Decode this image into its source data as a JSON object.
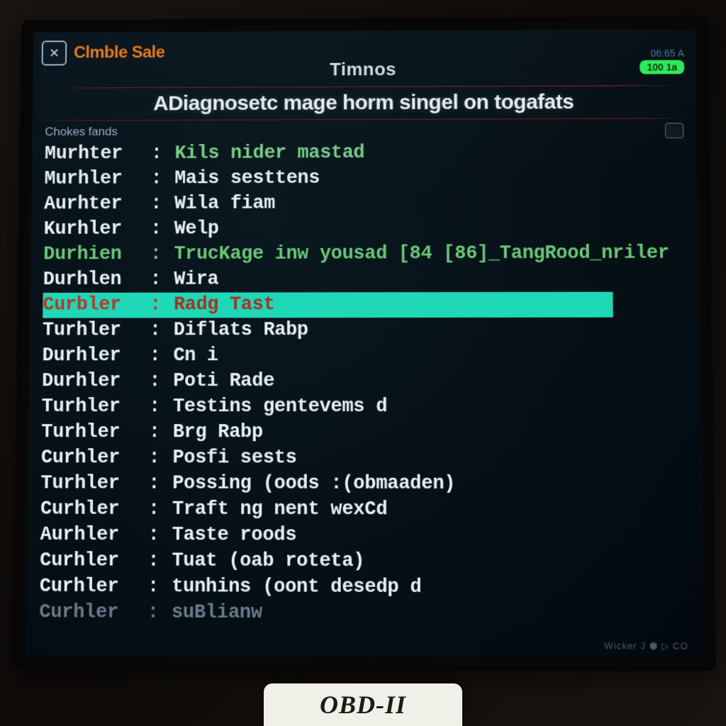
{
  "header": {
    "brand": "Clmble Sale",
    "title": "Timnos",
    "status_text": "06:65 A",
    "status_badge": "100 1a",
    "close_symbol": "✕"
  },
  "subtitle": "ADiagnosetc mage horm singel on togafats",
  "section_label": "Chokes fands",
  "footer": "Wicker  J  ⬢ ▷ CO",
  "bottom_label": "OBD-II",
  "colors": {
    "bg_gradient_start": "#0a1820",
    "bg_gradient_end": "#020810",
    "brand_orange": "#e67a1a",
    "text_primary": "#e8f0f5",
    "text_green": "#6ac878",
    "highlight_bg": "#1fd8b8",
    "highlight_text": "#b83828",
    "divider_red": "#8a1818",
    "status_green": "#2eea5a",
    "faded": "#6a7a8a"
  },
  "rows": [
    {
      "key": "Murhter",
      "sep": ":",
      "value": "Kils nider mastad",
      "style": "green-value"
    },
    {
      "key": "Murhler",
      "sep": ":",
      "value": "Mais sesttens",
      "style": "normal"
    },
    {
      "key": "Aurhter",
      "sep": ":",
      "value": "Wila fiam",
      "style": "normal"
    },
    {
      "key": "Kurhler",
      "sep": ":",
      "value": "Welp",
      "style": "normal"
    },
    {
      "key": "Durhien",
      "sep": ":",
      "value": "TrucKage inw yousad [84 [86]_TangRood_nriler",
      "style": "green"
    },
    {
      "key": "Durhlen",
      "sep": ":",
      "value": "Wira",
      "style": "normal"
    },
    {
      "key": "Curbler",
      "sep": ":",
      "value": "Radg Tast",
      "style": "highlighted"
    },
    {
      "key": "Turhler",
      "sep": ":",
      "value": "Diflats Rabp",
      "style": "normal"
    },
    {
      "key": "Durhler",
      "sep": ":",
      "value": "Cn i",
      "style": "normal"
    },
    {
      "key": "Durhler",
      "sep": ":",
      "value": "Poti Rade",
      "style": "normal"
    },
    {
      "key": "Turhler",
      "sep": ":",
      "value": "Testins gentevems d",
      "style": "normal"
    },
    {
      "key": "Turhler",
      "sep": ":",
      "value": "Brg Rabp",
      "style": "normal"
    },
    {
      "key": "Curhler",
      "sep": ":",
      "value": "Posfi sests",
      "style": "normal"
    },
    {
      "key": "Turhler",
      "sep": ":",
      "value": "Possing (oods :(obmaaden)",
      "style": "normal"
    },
    {
      "key": "Curhler",
      "sep": ":",
      "value": "Traft ng nent wexCd",
      "style": "normal"
    },
    {
      "key": "Aurhler",
      "sep": ":",
      "value": "Taste roods",
      "style": "normal"
    },
    {
      "key": "Curhler",
      "sep": ":",
      "value": "Tuat (oab roteta)",
      "style": "normal"
    },
    {
      "key": "Curhler",
      "sep": ":",
      "value": "tunhins (oont desedp d",
      "style": "normal"
    },
    {
      "key": "Curhler",
      "sep": ":",
      "value": "suBlianw",
      "style": "faded"
    }
  ]
}
